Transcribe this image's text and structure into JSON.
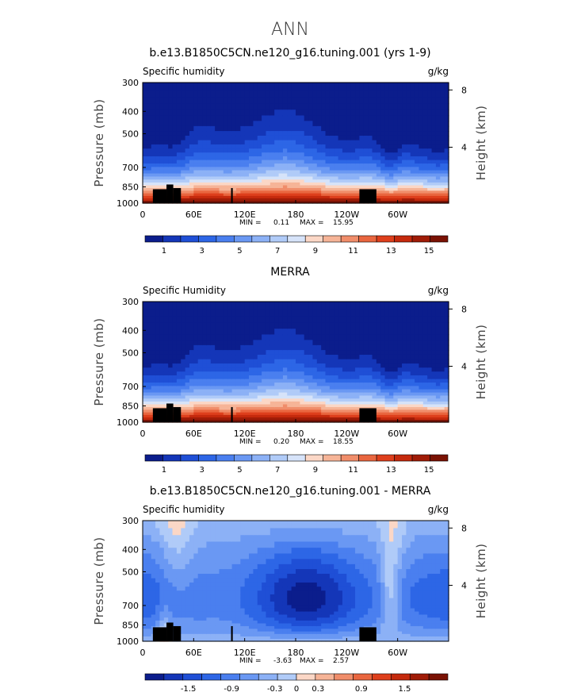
{
  "figure": {
    "title": "ANN"
  },
  "chart_data": [
    {
      "type": "heatmap",
      "title": "b.e13.B1850C5CN.ne120_g16.tuning.001 (yrs 1-9)",
      "variable_label": "Specific humidity",
      "units_label": "g/kg",
      "ylabel": "Pressure (mb)",
      "right_label": "Height (km)",
      "x_ticks": [
        "0",
        "60E",
        "120E",
        "180",
        "120W",
        "60W"
      ],
      "x_tick_values": [
        0,
        60,
        120,
        180,
        240,
        300
      ],
      "xlim": [
        0,
        360
      ],
      "y_ticks": [
        "300",
        "400",
        "500",
        "700",
        "850",
        "1000"
      ],
      "y_tick_values": [
        300,
        400,
        500,
        700,
        850,
        1000
      ],
      "ylim": [
        1000,
        300
      ],
      "right_ticks": [
        "4",
        "8"
      ],
      "right_tick_values": [
        4,
        8
      ],
      "min_label": "MIN =",
      "min_value": "0.11",
      "max_label": "MAX =",
      "max_value": "15.95",
      "colorbar": {
        "levels": [
          0,
          1,
          2,
          3,
          4,
          5,
          6,
          7,
          8,
          9,
          10,
          11,
          12,
          13,
          14,
          15,
          16
        ],
        "labels": [
          "1",
          "3",
          "5",
          "7",
          "9",
          "11",
          "13",
          "15"
        ],
        "label_values": [
          1,
          3,
          5,
          7,
          9,
          11,
          13,
          15
        ],
        "colors": [
          "#0b1d8c",
          "#1436b8",
          "#1f4fd6",
          "#2d66e6",
          "#4a7fef",
          "#6a98f3",
          "#8cb1f6",
          "#b0cbf8",
          "#d6e3f9",
          "#fbd7c6",
          "#f6b497",
          "#f08d6a",
          "#e9663f",
          "#de3f1c",
          "#c52a0d",
          "#a01c07",
          "#7a1204"
        ]
      },
      "series_note": ""
    },
    {
      "type": "heatmap",
      "title": "MERRA",
      "variable_label": "Specific Humidity",
      "units_label": "g/kg",
      "ylabel": "Pressure (mb)",
      "right_label": "Height (km)",
      "x_ticks": [
        "0",
        "60E",
        "120E",
        "180",
        "120W",
        "60W"
      ],
      "x_tick_values": [
        0,
        60,
        120,
        180,
        240,
        300
      ],
      "xlim": [
        0,
        360
      ],
      "y_ticks": [
        "300",
        "400",
        "500",
        "700",
        "850",
        "1000"
      ],
      "y_tick_values": [
        300,
        400,
        500,
        700,
        850,
        1000
      ],
      "ylim": [
        1000,
        300
      ],
      "right_ticks": [
        "4",
        "8"
      ],
      "right_tick_values": [
        4,
        8
      ],
      "min_label": "MIN =",
      "min_value": "0.20",
      "max_label": "MAX =",
      "max_value": "18.55",
      "colorbar": {
        "levels": [
          0,
          1,
          2,
          3,
          4,
          5,
          6,
          7,
          8,
          9,
          10,
          11,
          12,
          13,
          14,
          15,
          16
        ],
        "labels": [
          "1",
          "3",
          "5",
          "7",
          "9",
          "11",
          "13",
          "15"
        ],
        "label_values": [
          1,
          3,
          5,
          7,
          9,
          11,
          13,
          15
        ],
        "colors": [
          "#0b1d8c",
          "#1436b8",
          "#1f4fd6",
          "#2d66e6",
          "#4a7fef",
          "#6a98f3",
          "#8cb1f6",
          "#b0cbf8",
          "#d6e3f9",
          "#fbd7c6",
          "#f6b497",
          "#f08d6a",
          "#e9663f",
          "#de3f1c",
          "#c52a0d",
          "#a01c07",
          "#7a1204"
        ]
      },
      "series_note": ""
    },
    {
      "type": "heatmap",
      "title": "b.e13.B1850C5CN.ne120_g16.tuning.001 - MERRA",
      "variable_label": "Specific humidity",
      "units_label": "g/kg",
      "ylabel": "Pressure (mb)",
      "right_label": "Height (km)",
      "x_ticks": [
        "0",
        "60E",
        "120E",
        "180",
        "120W",
        "60W"
      ],
      "x_tick_values": [
        0,
        60,
        120,
        180,
        240,
        300
      ],
      "xlim": [
        0,
        360
      ],
      "y_ticks": [
        "300",
        "400",
        "500",
        "700",
        "850",
        "1000"
      ],
      "y_tick_values": [
        300,
        400,
        500,
        700,
        850,
        1000
      ],
      "ylim": [
        1000,
        300
      ],
      "right_ticks": [
        "4",
        "8"
      ],
      "right_tick_values": [
        4,
        8
      ],
      "min_label": "MIN =",
      "min_value": "-3.63",
      "max_label": "MAX =",
      "max_value": "2.57",
      "colorbar": {
        "levels": [
          -2.1,
          -1.8,
          -1.5,
          -1.2,
          -0.9,
          -0.6,
          -0.3,
          0,
          0.3,
          0.6,
          0.9,
          1.2,
          1.5,
          1.8,
          2.1
        ],
        "labels": [
          "-1.5",
          "-0.9",
          "-0.3",
          "0",
          "0.3",
          "0.9",
          "1.5"
        ],
        "label_values": [
          -1.5,
          -0.9,
          -0.3,
          0,
          0.3,
          0.9,
          1.5
        ],
        "colors": [
          "#0b1d8c",
          "#1436b8",
          "#1f4fd6",
          "#2d66e6",
          "#4a7fef",
          "#6a98f3",
          "#8cb1f6",
          "#b0cbf8",
          "#fbd7c6",
          "#f6b497",
          "#f08d6a",
          "#e9663f",
          "#de3f1c",
          "#c52a0d",
          "#a01c07",
          "#7a1204"
        ]
      },
      "series_note": ""
    }
  ]
}
